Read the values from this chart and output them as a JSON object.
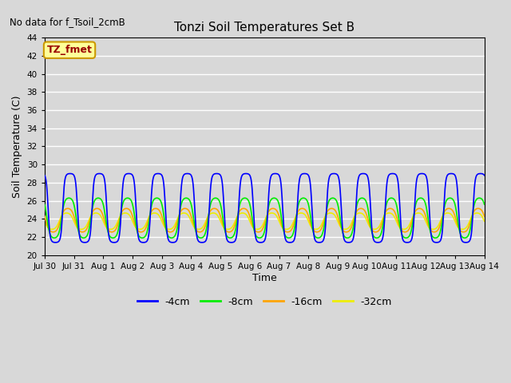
{
  "title": "Tonzi Soil Temperatures Set B",
  "no_data_text": "No data for f_Tsoil_2cmB",
  "ylabel": "Soil Temperature (C)",
  "xlabel": "Time",
  "ylim": [
    20,
    44
  ],
  "yticks": [
    20,
    22,
    24,
    26,
    28,
    30,
    32,
    34,
    36,
    38,
    40,
    42,
    44
  ],
  "xtick_labels": [
    "Jul 30",
    "Jul 31",
    "Aug 1",
    "Aug 2",
    "Aug 3",
    "Aug 4",
    "Aug 5",
    "Aug 6",
    "Aug 7",
    "Aug 8",
    "Aug 9",
    "Aug 10",
    "Aug 11",
    "Aug 12",
    "Aug 13",
    "Aug 14"
  ],
  "legend_box_label": "TZ_fmet",
  "legend_box_bg": "#FFFF99",
  "legend_box_text": "#990000",
  "series": [
    {
      "label": "-4cm",
      "color": "#0000FF",
      "lw": 1.2
    },
    {
      "label": "-8cm",
      "color": "#00EE00",
      "lw": 1.2
    },
    {
      "label": "-16cm",
      "color": "#FFA500",
      "lw": 1.2
    },
    {
      "label": "-32cm",
      "color": "#EEEE00",
      "lw": 1.2
    }
  ],
  "fig_bg": "#D8D8D8",
  "plot_bg": "#D8D8D8",
  "grid_color": "#FFFFFF",
  "n_days": 15,
  "points_per_day": 144,
  "blue_amplitude": 3.8,
  "blue_mean": 25.2,
  "blue_phase": 0.62,
  "green_amplitude": 2.2,
  "green_mean": 24.1,
  "green_phase": 0.58,
  "orange_amplitude": 1.3,
  "orange_mean": 23.85,
  "orange_phase": 0.54,
  "yellow_amplitude": 0.9,
  "yellow_mean": 23.75,
  "yellow_phase": 0.5
}
